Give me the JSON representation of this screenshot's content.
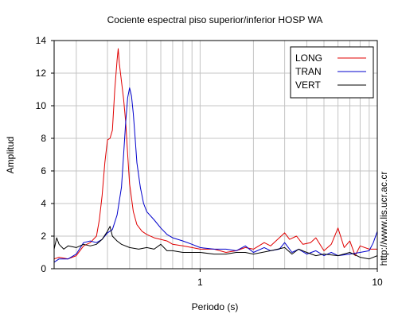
{
  "chart_data": {
    "type": "line",
    "title": "Cociente espectral piso superior/inferior  HOSP WA",
    "xlabel": "Periodo (s)",
    "ylabel": "Amplitud",
    "side_note": "http://www.lis.ucr.ac.cr",
    "x_scale": "log",
    "xlim": [
      0.15,
      10
    ],
    "ylim": [
      0,
      14
    ],
    "x_ticks": [
      {
        "value": 1,
        "label": "1"
      },
      {
        "value": 10,
        "label": "10"
      }
    ],
    "y_ticks": [
      0,
      2,
      4,
      6,
      8,
      10,
      12,
      14
    ],
    "grid": true,
    "legend": "top-right",
    "series": [
      {
        "name": "LONG",
        "color": "#e00000",
        "points": [
          [
            0.15,
            0.6
          ],
          [
            0.16,
            0.7
          ],
          [
            0.18,
            0.6
          ],
          [
            0.2,
            0.8
          ],
          [
            0.22,
            1.4
          ],
          [
            0.24,
            1.6
          ],
          [
            0.26,
            2.0
          ],
          [
            0.27,
            3.0
          ],
          [
            0.28,
            4.5
          ],
          [
            0.29,
            6.5
          ],
          [
            0.3,
            7.9
          ],
          [
            0.31,
            8.0
          ],
          [
            0.32,
            8.5
          ],
          [
            0.33,
            11.0
          ],
          [
            0.34,
            12.8
          ],
          [
            0.345,
            13.5
          ],
          [
            0.35,
            12.6
          ],
          [
            0.36,
            11.5
          ],
          [
            0.37,
            10.4
          ],
          [
            0.38,
            9.0
          ],
          [
            0.39,
            7.0
          ],
          [
            0.4,
            5.2
          ],
          [
            0.42,
            3.5
          ],
          [
            0.44,
            2.7
          ],
          [
            0.47,
            2.3
          ],
          [
            0.5,
            2.1
          ],
          [
            0.55,
            1.9
          ],
          [
            0.6,
            1.8
          ],
          [
            0.65,
            1.7
          ],
          [
            0.7,
            1.5
          ],
          [
            0.8,
            1.4
          ],
          [
            0.9,
            1.3
          ],
          [
            1.0,
            1.2
          ],
          [
            1.2,
            1.2
          ],
          [
            1.4,
            1.0
          ],
          [
            1.6,
            1.1
          ],
          [
            1.8,
            1.3
          ],
          [
            2.0,
            1.2
          ],
          [
            2.3,
            1.6
          ],
          [
            2.5,
            1.4
          ],
          [
            2.8,
            1.9
          ],
          [
            3.0,
            2.2
          ],
          [
            3.2,
            1.8
          ],
          [
            3.5,
            2.0
          ],
          [
            3.8,
            1.5
          ],
          [
            4.2,
            1.6
          ],
          [
            4.5,
            1.9
          ],
          [
            5.0,
            1.1
          ],
          [
            5.5,
            1.5
          ],
          [
            6.0,
            2.5
          ],
          [
            6.5,
            1.3
          ],
          [
            7.0,
            1.7
          ],
          [
            7.5,
            0.8
          ],
          [
            8.0,
            1.4
          ],
          [
            9.0,
            1.2
          ],
          [
            10.0,
            1.2
          ]
        ]
      },
      {
        "name": "TRAN",
        "color": "#0000cc",
        "points": [
          [
            0.15,
            0.4
          ],
          [
            0.16,
            0.6
          ],
          [
            0.18,
            0.6
          ],
          [
            0.2,
            0.9
          ],
          [
            0.22,
            1.6
          ],
          [
            0.24,
            1.7
          ],
          [
            0.26,
            1.6
          ],
          [
            0.28,
            1.8
          ],
          [
            0.3,
            2.2
          ],
          [
            0.32,
            2.4
          ],
          [
            0.34,
            3.3
          ],
          [
            0.36,
            5.0
          ],
          [
            0.37,
            7.0
          ],
          [
            0.38,
            9.0
          ],
          [
            0.39,
            10.5
          ],
          [
            0.4,
            11.1
          ],
          [
            0.41,
            10.6
          ],
          [
            0.42,
            9.5
          ],
          [
            0.43,
            8.0
          ],
          [
            0.44,
            6.5
          ],
          [
            0.46,
            5.0
          ],
          [
            0.48,
            4.0
          ],
          [
            0.5,
            3.5
          ],
          [
            0.55,
            3.0
          ],
          [
            0.6,
            2.5
          ],
          [
            0.65,
            2.1
          ],
          [
            0.7,
            1.9
          ],
          [
            0.8,
            1.7
          ],
          [
            0.9,
            1.5
          ],
          [
            1.0,
            1.3
          ],
          [
            1.2,
            1.2
          ],
          [
            1.4,
            1.2
          ],
          [
            1.6,
            1.1
          ],
          [
            1.8,
            1.4
          ],
          [
            2.0,
            1.0
          ],
          [
            2.3,
            1.3
          ],
          [
            2.5,
            1.1
          ],
          [
            2.8,
            1.2
          ],
          [
            3.0,
            1.6
          ],
          [
            3.3,
            1.0
          ],
          [
            3.6,
            1.2
          ],
          [
            4.0,
            0.9
          ],
          [
            4.5,
            1.1
          ],
          [
            5.0,
            0.8
          ],
          [
            5.5,
            1.0
          ],
          [
            6.0,
            0.8
          ],
          [
            7.0,
            0.9
          ],
          [
            8.0,
            1.0
          ],
          [
            9.0,
            1.1
          ],
          [
            9.5,
            1.6
          ],
          [
            10.0,
            2.3
          ]
        ]
      },
      {
        "name": "VERT",
        "color": "#000000",
        "points": [
          [
            0.15,
            1.2
          ],
          [
            0.155,
            1.9
          ],
          [
            0.16,
            1.5
          ],
          [
            0.17,
            1.2
          ],
          [
            0.18,
            1.4
          ],
          [
            0.2,
            1.3
          ],
          [
            0.22,
            1.5
          ],
          [
            0.24,
            1.4
          ],
          [
            0.26,
            1.5
          ],
          [
            0.28,
            1.8
          ],
          [
            0.3,
            2.3
          ],
          [
            0.31,
            2.6
          ],
          [
            0.32,
            2.0
          ],
          [
            0.34,
            1.7
          ],
          [
            0.36,
            1.5
          ],
          [
            0.4,
            1.3
          ],
          [
            0.45,
            1.2
          ],
          [
            0.5,
            1.3
          ],
          [
            0.55,
            1.2
          ],
          [
            0.6,
            1.5
          ],
          [
            0.65,
            1.1
          ],
          [
            0.7,
            1.1
          ],
          [
            0.8,
            1.0
          ],
          [
            0.9,
            1.0
          ],
          [
            1.0,
            1.0
          ],
          [
            1.2,
            0.9
          ],
          [
            1.4,
            0.9
          ],
          [
            1.6,
            1.0
          ],
          [
            1.8,
            1.0
          ],
          [
            2.0,
            0.9
          ],
          [
            2.5,
            1.1
          ],
          [
            3.0,
            1.3
          ],
          [
            3.3,
            0.9
          ],
          [
            3.6,
            1.2
          ],
          [
            4.0,
            1.0
          ],
          [
            4.5,
            0.8
          ],
          [
            5.0,
            0.9
          ],
          [
            6.0,
            0.8
          ],
          [
            7.0,
            1.0
          ],
          [
            8.0,
            0.7
          ],
          [
            9.0,
            0.6
          ],
          [
            10.0,
            0.8
          ]
        ]
      }
    ]
  }
}
